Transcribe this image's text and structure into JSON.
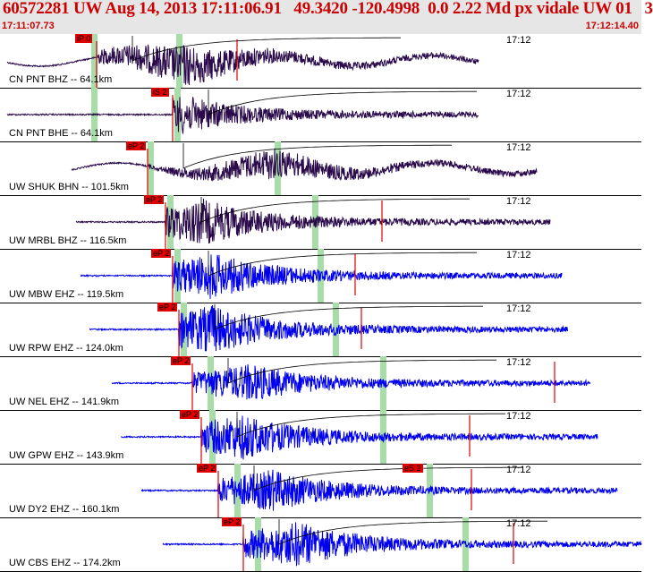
{
  "header": {
    "title": "60572281 UW Aug 14, 2013 17:11:06.91   49.3420 -120.4998  0.0 2.22 Md px vidale UW 01   3",
    "start_time": "17:11:07.73",
    "end_time": "17:12:14.40"
  },
  "colors": {
    "header_bg": "#e6e6e6",
    "header_text": "#cc0000",
    "trace_dark": "#2a0a4a",
    "trace_blue": "#0000ee",
    "pick_red": "#e00000",
    "window_green": "#a8dca8"
  },
  "channels": [
    {
      "label": "CN PNT BHZ -- 64.1km",
      "time_mark": "17:12",
      "pick": "iP 0",
      "pick2": "",
      "color": "dark",
      "start": 8,
      "end": 535,
      "pick_t": 108,
      "green": [
        105,
        200
      ],
      "red_lines": [
        265
      ],
      "peak_at": 205,
      "amp": 22
    },
    {
      "label": "CN PNT BHE -- 64.1km",
      "time_mark": "17:12",
      "pick": "iS 2",
      "pick2": "",
      "color": "dark",
      "start": 8,
      "end": 535,
      "pick_t": 193,
      "green": [
        105,
        198
      ],
      "red_lines": [],
      "peak_at": 200,
      "amp": 20
    },
    {
      "label": "UW SHUK BHN -- 101.5km",
      "time_mark": "17:12",
      "pick": "eP 2",
      "pick2": "",
      "color": "dark",
      "start": 80,
      "end": 600,
      "pick_t": 165,
      "green": [
        168,
        310
      ],
      "red_lines": [],
      "peak_at": 300,
      "amp": 16
    },
    {
      "label": "UW MRBL BHZ -- 116.5km",
      "time_mark": "17:12",
      "pick": "eP 2",
      "pick2": "",
      "color": "dark",
      "start": 85,
      "end": 615,
      "pick_t": 185,
      "green": [
        190,
        352
      ],
      "red_lines": [
        427
      ],
      "peak_at": 225,
      "amp": 24
    },
    {
      "label": "UW MBW EHZ -- 119.5km",
      "time_mark": "17:12",
      "pick": "eP 2",
      "pick2": "",
      "color": "blue",
      "start": 90,
      "end": 628,
      "pick_t": 193,
      "green": [
        198,
        358
      ],
      "red_lines": [
        397
      ],
      "peak_at": 235,
      "amp": 24
    },
    {
      "label": "UW RPW EHZ -- 124.0km",
      "time_mark": "17:12",
      "pick": "eP 2",
      "pick2": "",
      "color": "blue",
      "start": 100,
      "end": 635,
      "pick_t": 200,
      "green": [
        205,
        375
      ],
      "red_lines": [
        404
      ],
      "peak_at": 235,
      "amp": 26
    },
    {
      "label": "UW NEL EHZ -- 141.9km",
      "time_mark": "17:12",
      "pick": "eP 2",
      "pick2": "",
      "color": "blue",
      "start": 125,
      "end": 660,
      "pick_t": 215,
      "green": [
        235,
        428
      ],
      "red_lines": [
        620
      ],
      "peak_at": 275,
      "amp": 20
    },
    {
      "label": "UW GPW EHZ -- 143.9km",
      "time_mark": "17:12",
      "pick": "eP 2",
      "pick2": "",
      "color": "blue",
      "start": 135,
      "end": 668,
      "pick_t": 225,
      "green": [
        237,
        428
      ],
      "red_lines": [
        525
      ],
      "peak_at": 268,
      "amp": 24
    },
    {
      "label": "UW DY2 EHZ -- 160.1km",
      "time_mark": "17:12",
      "pick": "eP 2",
      "pick2": "eS 2",
      "color": "blue",
      "start": 158,
      "end": 690,
      "pick_t": 244,
      "green": [
        265,
        480
      ],
      "red_lines": [
        527
      ],
      "peak_at": 300,
      "amp": 22
    },
    {
      "label": "UW CBS EHZ -- 174.2km",
      "time_mark": "17:12",
      "pick": "eP 2",
      "pick2": "",
      "color": "blue",
      "start": 182,
      "end": 717,
      "pick_t": 272,
      "green": [
        288,
        520
      ],
      "red_lines": [
        574
      ],
      "peak_at": 330,
      "amp": 24
    }
  ]
}
